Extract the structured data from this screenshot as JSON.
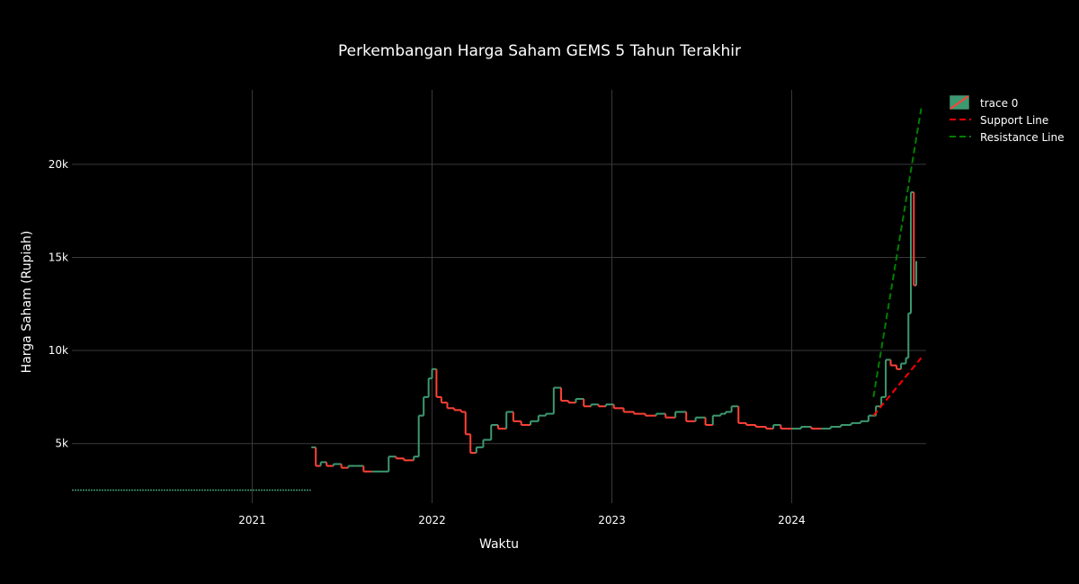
{
  "chart_data": {
    "type": "candlestick",
    "title": "Perkembangan Harga Saham GEMS 5 Tahun Terakhir",
    "xlabel": "Waktu",
    "ylabel": "Harga Saham (Rupiah)",
    "x_range": [
      "2020-01-01",
      "2024-09-30"
    ],
    "ylim": [
      1800,
      24000
    ],
    "x_ticks": [
      {
        "date": "2021-01-01",
        "label": "2021"
      },
      {
        "date": "2022-01-01",
        "label": "2022"
      },
      {
        "date": "2023-01-01",
        "label": "2023"
      },
      {
        "date": "2024-01-01",
        "label": "2024"
      }
    ],
    "y_ticks": [
      {
        "value": 5000,
        "label": "5k"
      },
      {
        "value": 10000,
        "label": "10k"
      },
      {
        "value": 15000,
        "label": "15k"
      },
      {
        "value": 20000,
        "label": "20k"
      }
    ],
    "grid": true,
    "legend_position": "top-right",
    "colors": {
      "increasing": "#3d9970",
      "decreasing": "#ff4136",
      "support": "#ff0000",
      "resistance": "#008000",
      "background": "#000000",
      "grid": "#3a3a3a"
    },
    "legend": [
      "trace 0",
      "Support Line",
      "Resistance Line"
    ],
    "candles": {
      "name": "trace 0",
      "flat_segment": {
        "start": "2020-01-01",
        "end": "2021-04-30",
        "value": 2500
      },
      "points": [
        [
          "2021-05-01",
          4800
        ],
        [
          "2021-05-10",
          3800
        ],
        [
          "2021-05-20",
          4000
        ],
        [
          "2021-06-01",
          3800
        ],
        [
          "2021-06-15",
          3900
        ],
        [
          "2021-07-01",
          3700
        ],
        [
          "2021-07-15",
          3800
        ],
        [
          "2021-08-01",
          3800
        ],
        [
          "2021-08-15",
          3500
        ],
        [
          "2021-09-01",
          3500
        ],
        [
          "2021-09-20",
          3500
        ],
        [
          "2021-10-05",
          4300
        ],
        [
          "2021-10-20",
          4200
        ],
        [
          "2021-11-05",
          4100
        ],
        [
          "2021-11-25",
          4300
        ],
        [
          "2021-12-05",
          6500
        ],
        [
          "2021-12-15",
          7500
        ],
        [
          "2021-12-25",
          8500
        ],
        [
          "2022-01-01",
          9000
        ],
        [
          "2022-01-10",
          7500
        ],
        [
          "2022-01-20",
          7200
        ],
        [
          "2022-02-01",
          6900
        ],
        [
          "2022-02-15",
          6800
        ],
        [
          "2022-03-01",
          6700
        ],
        [
          "2022-03-10",
          5500
        ],
        [
          "2022-03-20",
          4500
        ],
        [
          "2022-04-01",
          4800
        ],
        [
          "2022-04-15",
          5200
        ],
        [
          "2022-05-01",
          6000
        ],
        [
          "2022-05-15",
          5800
        ],
        [
          "2022-06-01",
          6700
        ],
        [
          "2022-06-15",
          6200
        ],
        [
          "2022-07-01",
          6000
        ],
        [
          "2022-07-20",
          6200
        ],
        [
          "2022-08-05",
          6500
        ],
        [
          "2022-08-20",
          6600
        ],
        [
          "2022-09-05",
          8000
        ],
        [
          "2022-09-20",
          7300
        ],
        [
          "2022-10-05",
          7200
        ],
        [
          "2022-10-20",
          7400
        ],
        [
          "2022-11-05",
          7000
        ],
        [
          "2022-11-20",
          7100
        ],
        [
          "2022-12-05",
          7000
        ],
        [
          "2022-12-20",
          7100
        ],
        [
          "2023-01-05",
          6900
        ],
        [
          "2023-01-25",
          6700
        ],
        [
          "2023-02-15",
          6600
        ],
        [
          "2023-03-10",
          6500
        ],
        [
          "2023-04-01",
          6600
        ],
        [
          "2023-04-20",
          6400
        ],
        [
          "2023-05-10",
          6700
        ],
        [
          "2023-06-01",
          6200
        ],
        [
          "2023-06-20",
          6400
        ],
        [
          "2023-07-10",
          6000
        ],
        [
          "2023-07-25",
          6500
        ],
        [
          "2023-08-10",
          6600
        ],
        [
          "2023-08-20",
          6700
        ],
        [
          "2023-09-01",
          7000
        ],
        [
          "2023-09-15",
          6100
        ],
        [
          "2023-10-01",
          6000
        ],
        [
          "2023-10-20",
          5900
        ],
        [
          "2023-11-10",
          5800
        ],
        [
          "2023-11-25",
          6000
        ],
        [
          "2023-12-10",
          5800
        ],
        [
          "2024-01-01",
          5800
        ],
        [
          "2024-01-20",
          5900
        ],
        [
          "2024-02-10",
          5800
        ],
        [
          "2024-03-01",
          5800
        ],
        [
          "2024-03-20",
          5900
        ],
        [
          "2024-04-10",
          6000
        ],
        [
          "2024-05-01",
          6100
        ],
        [
          "2024-05-20",
          6200
        ],
        [
          "2024-06-05",
          6500
        ],
        [
          "2024-06-20",
          7000
        ],
        [
          "2024-07-01",
          7500
        ],
        [
          "2024-07-10",
          9500
        ],
        [
          "2024-07-20",
          9200
        ],
        [
          "2024-08-01",
          9000
        ],
        [
          "2024-08-10",
          9300
        ],
        [
          "2024-08-20",
          9600
        ],
        [
          "2024-08-25",
          12000
        ],
        [
          "2024-08-30",
          18500
        ],
        [
          "2024-09-05",
          13500
        ],
        [
          "2024-09-10",
          14800
        ]
      ]
    },
    "support_line": {
      "name": "Support Line",
      "start": [
        "2024-06-15",
        6500
      ],
      "end": [
        "2024-09-20",
        9600
      ]
    },
    "resistance_line": {
      "name": "Resistance Line",
      "start": [
        "2024-06-15",
        7500
      ],
      "end": [
        "2024-09-20",
        23000
      ]
    }
  }
}
